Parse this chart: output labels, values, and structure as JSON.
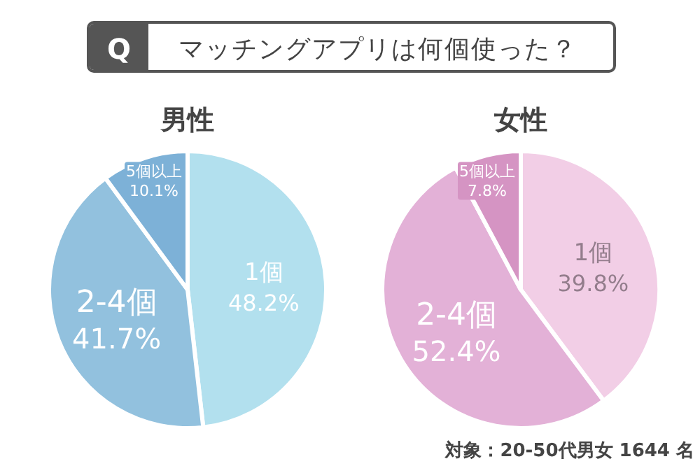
{
  "chart_data": [
    {
      "type": "other",
      "title": "マッチングアプリは何個使った？",
      "annotations": [
        "Q"
      ]
    },
    {
      "type": "pie",
      "title": "男性",
      "categories": [
        "1個",
        "2-4個",
        "5個以上"
      ],
      "values": [
        48.2,
        41.7,
        10.1
      ],
      "value_labels": [
        "48.2%",
        "41.7%",
        "10.1%"
      ],
      "colors": [
        "#b2e0ee",
        "#92c1de",
        "#7db1d7"
      ]
    },
    {
      "type": "pie",
      "title": "女性",
      "categories": [
        "1個",
        "2-4個",
        "5個以上"
      ],
      "values": [
        39.8,
        52.4,
        7.8
      ],
      "value_labels": [
        "39.8%",
        "52.4%",
        "7.8%"
      ],
      "colors": [
        "#f2cee6",
        "#e3b1d7",
        "#d594c3"
      ],
      "annotations": [
        "対象：20-50代男女 1644 名"
      ]
    }
  ]
}
